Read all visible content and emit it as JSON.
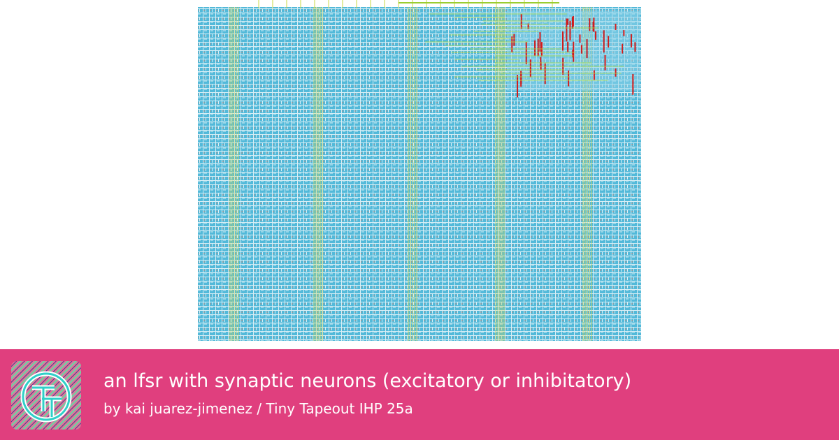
{
  "card": {
    "title": "an lfsr with synaptic neurons (excitatory or inhibitatory)",
    "subtitle": "by kai juarez-jimenez / Tiny Tapeout IHP 25a"
  }
}
